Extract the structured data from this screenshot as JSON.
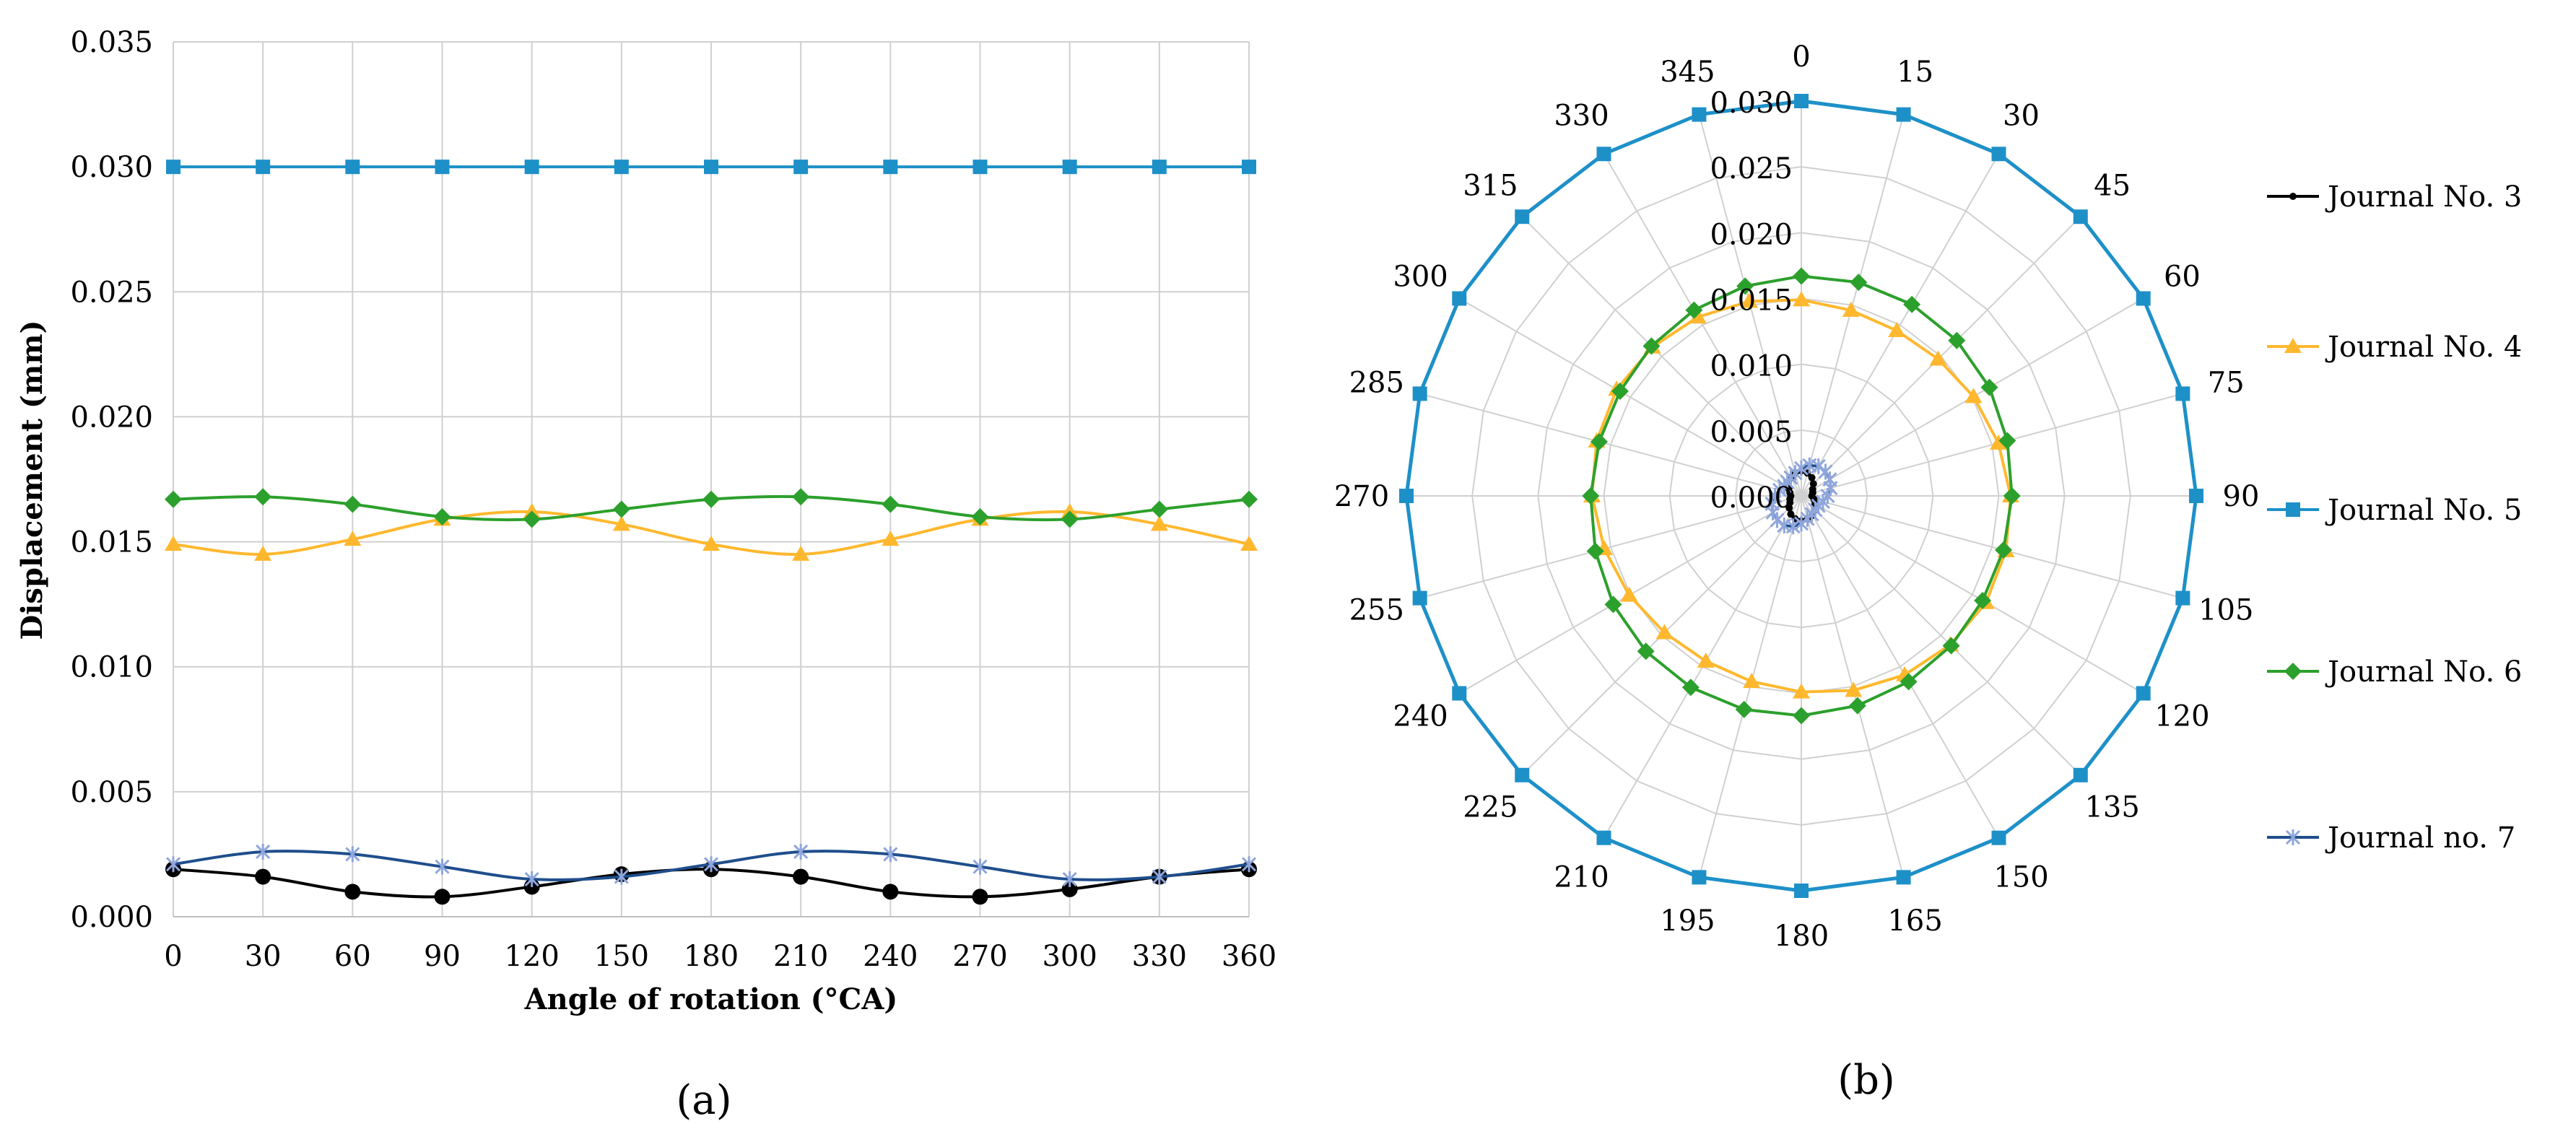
{
  "chart_data": [
    {
      "panel": "(a)",
      "type": "line",
      "xlabel": "Angle of rotation (°CA)",
      "ylabel": "Displacement (mm)",
      "xlim": [
        0,
        360
      ],
      "ylim": [
        0,
        0.035
      ],
      "x_ticks": [
        "0",
        "30",
        "60",
        "90",
        "120",
        "150",
        "180",
        "210",
        "240",
        "270",
        "300",
        "330",
        "360"
      ],
      "y_ticks": [
        "0.000",
        "0.005",
        "0.010",
        "0.015",
        "0.020",
        "0.025",
        "0.030",
        "0.035"
      ],
      "grid": true,
      "x": [
        0,
        30,
        60,
        90,
        120,
        150,
        180,
        210,
        240,
        270,
        300,
        330,
        360
      ],
      "series": [
        {
          "name": "Journal No. 3",
          "color": "#000000",
          "marker": "circle",
          "values": [
            0.0019,
            0.0016,
            0.001,
            0.0008,
            0.0012,
            0.0017,
            0.0019,
            0.0016,
            0.001,
            0.0008,
            0.0011,
            0.0016,
            0.0019
          ]
        },
        {
          "name": "Journal No. 4",
          "color": "#ffb82e",
          "marker": "triangle",
          "values": [
            0.0149,
            0.0145,
            0.0151,
            0.0159,
            0.0162,
            0.0157,
            0.0149,
            0.0145,
            0.0151,
            0.0159,
            0.0162,
            0.0157,
            0.0149
          ]
        },
        {
          "name": "Journal No. 5",
          "color": "#1e90c8",
          "marker": "square",
          "values": [
            0.03,
            0.03,
            0.03,
            0.03,
            0.03,
            0.03,
            0.03,
            0.03,
            0.03,
            0.03,
            0.03,
            0.03,
            0.03
          ]
        },
        {
          "name": "Journal No. 6",
          "color": "#2ca02c",
          "marker": "diamond",
          "values": [
            0.0167,
            0.0168,
            0.0165,
            0.016,
            0.0159,
            0.0163,
            0.0167,
            0.0168,
            0.0165,
            0.016,
            0.0159,
            0.0163,
            0.0167
          ]
        },
        {
          "name": "Journal no. 7",
          "color": "#1f4e8c",
          "marker": "x",
          "values": [
            0.0021,
            0.0026,
            0.0025,
            0.002,
            0.0015,
            0.0016,
            0.0021,
            0.0026,
            0.0025,
            0.002,
            0.0015,
            0.0016,
            0.0021
          ]
        }
      ]
    },
    {
      "panel": "(b)",
      "type": "radar",
      "angles": [
        0,
        15,
        30,
        45,
        60,
        75,
        90,
        105,
        120,
        135,
        150,
        165,
        180,
        195,
        210,
        225,
        240,
        255,
        270,
        285,
        300,
        315,
        330,
        345
      ],
      "angle_labels": [
        "0",
        "15",
        "30",
        "45",
        "60",
        "75",
        "90",
        "105",
        "120",
        "135",
        "150",
        "165",
        "180",
        "195",
        "210",
        "225",
        "240",
        "255",
        "270",
        "285",
        "300",
        "315",
        "330",
        "345"
      ],
      "r_ticks": [
        "0.000",
        "0.005",
        "0.010",
        "0.015",
        "0.020",
        "0.025",
        "0.030"
      ],
      "rlim": [
        0,
        0.03
      ],
      "series": [
        {
          "name": "Journal No. 3",
          "color": "#000000",
          "marker": "dot",
          "values": [
            0.0019,
            0.0018,
            0.0016,
            0.0013,
            0.001,
            0.0009,
            0.0008,
            0.001,
            0.0012,
            0.0015,
            0.0017,
            0.0018,
            0.0019,
            0.0018,
            0.0016,
            0.0013,
            0.001,
            0.0009,
            0.0008,
            0.0009,
            0.0011,
            0.0014,
            0.0016,
            0.0018
          ]
        },
        {
          "name": "Journal No. 4",
          "color": "#ffb82e",
          "marker": "triangle",
          "values": [
            0.0149,
            0.0146,
            0.0145,
            0.0147,
            0.0151,
            0.0155,
            0.0159,
            0.0161,
            0.0162,
            0.016,
            0.0157,
            0.0153,
            0.0149,
            0.0146,
            0.0145,
            0.0147,
            0.0151,
            0.0155,
            0.0159,
            0.0161,
            0.0162,
            0.016,
            0.0157,
            0.0153
          ]
        },
        {
          "name": "Journal No. 5",
          "color": "#1e90c8",
          "marker": "square",
          "values": [
            0.03,
            0.03,
            0.03,
            0.03,
            0.03,
            0.03,
            0.03,
            0.03,
            0.03,
            0.03,
            0.03,
            0.03,
            0.03,
            0.03,
            0.03,
            0.03,
            0.03,
            0.03,
            0.03,
            0.03,
            0.03,
            0.03,
            0.03,
            0.03
          ]
        },
        {
          "name": "Journal No. 6",
          "color": "#2ca02c",
          "marker": "diamond",
          "values": [
            0.0167,
            0.0168,
            0.0168,
            0.0167,
            0.0165,
            0.0162,
            0.016,
            0.0159,
            0.0159,
            0.0161,
            0.0163,
            0.0165,
            0.0167,
            0.0168,
            0.0168,
            0.0167,
            0.0165,
            0.0162,
            0.016,
            0.0159,
            0.0159,
            0.0161,
            0.0163,
            0.0165
          ]
        },
        {
          "name": "Journal no. 7",
          "color": "#1f4e8c",
          "marker": "x",
          "values": [
            0.0021,
            0.0024,
            0.0026,
            0.0026,
            0.0025,
            0.0023,
            0.002,
            0.0017,
            0.0015,
            0.0015,
            0.0016,
            0.0018,
            0.0021,
            0.0024,
            0.0026,
            0.0026,
            0.0025,
            0.0023,
            0.002,
            0.0017,
            0.0015,
            0.0015,
            0.0016,
            0.0018
          ]
        }
      ],
      "legend_position": "right"
    }
  ]
}
